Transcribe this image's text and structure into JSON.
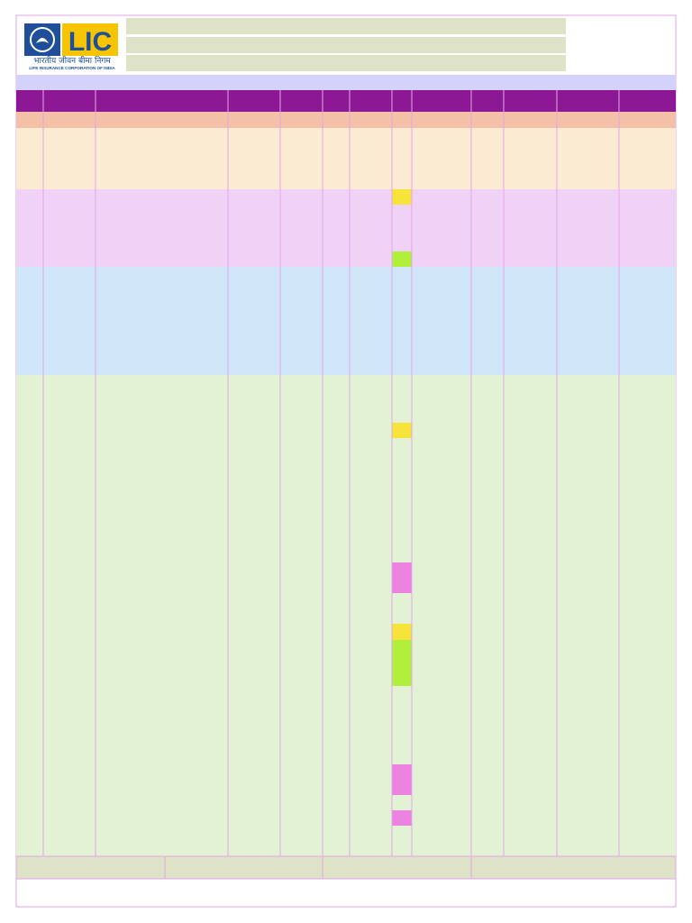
{
  "logo": {
    "name": "LIC",
    "hindi": "भारतीय जीवन बीमा निगम",
    "english": "LIFE INSURANCE CORPORATION OF INDIA"
  }
}
